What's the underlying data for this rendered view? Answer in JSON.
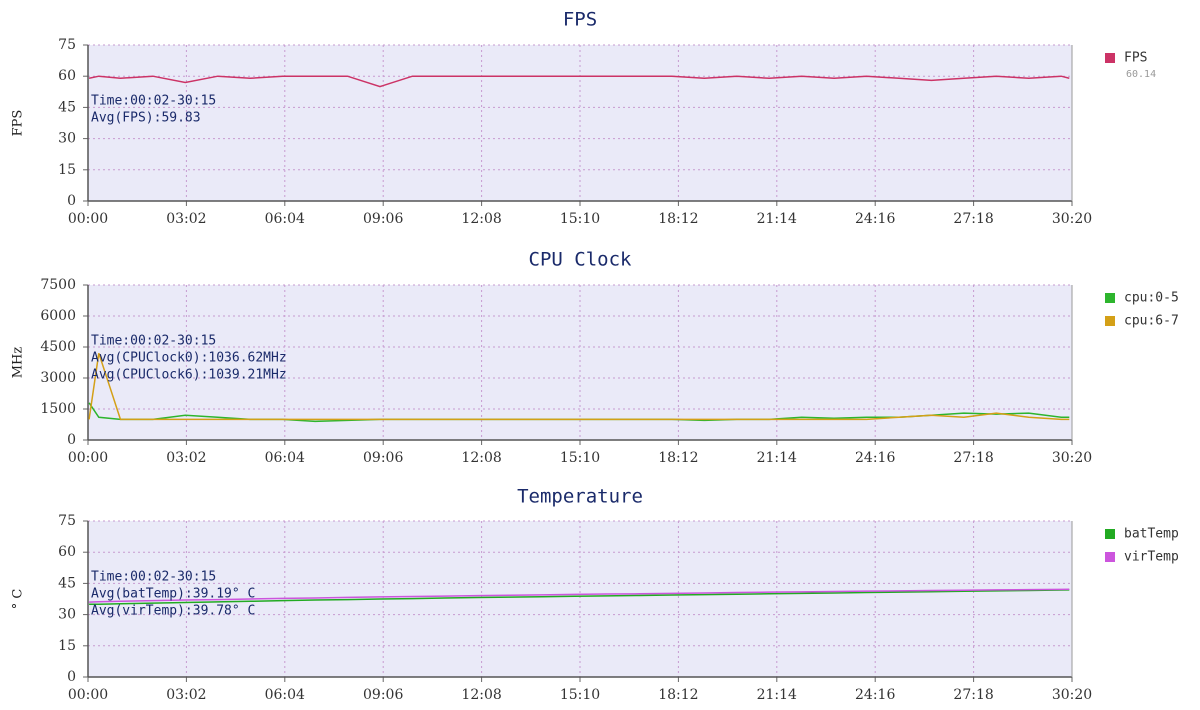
{
  "chart_data": [
    {
      "type": "line",
      "title": "FPS",
      "ylabel": "FPS",
      "x": [
        2,
        20,
        60,
        120,
        180,
        240,
        300,
        360,
        420,
        480,
        540,
        600,
        660,
        720,
        780,
        840,
        900,
        960,
        1020,
        1080,
        1140,
        1200,
        1260,
        1320,
        1380,
        1440,
        1500,
        1560,
        1620,
        1680,
        1740,
        1800,
        1815
      ],
      "xlim": [
        0,
        1820
      ],
      "xticks": [
        {
          "value": 0,
          "label": "00:00"
        },
        {
          "value": 182,
          "label": "03:02"
        },
        {
          "value": 364,
          "label": "06:04"
        },
        {
          "value": 546,
          "label": "09:06"
        },
        {
          "value": 728,
          "label": "12:08"
        },
        {
          "value": 910,
          "label": "15:10"
        },
        {
          "value": 1092,
          "label": "18:12"
        },
        {
          "value": 1274,
          "label": "21:14"
        },
        {
          "value": 1456,
          "label": "24:16"
        },
        {
          "value": 1638,
          "label": "27:18"
        },
        {
          "value": 1820,
          "label": "30:20"
        }
      ],
      "ylim": [
        0,
        75
      ],
      "yticks": [
        0,
        15,
        30,
        45,
        60,
        75
      ],
      "grid": true,
      "annotations": [
        "Time:00:02-30:15",
        "Avg(FPS):59.83"
      ],
      "series": [
        {
          "name": "FPS",
          "color": "#cc3366",
          "legend_value": 60.14,
          "values": [
            59,
            60,
            59,
            60,
            57,
            60,
            59,
            60,
            60,
            60,
            55,
            60,
            60,
            60,
            60,
            60,
            60,
            60,
            60,
            60,
            59,
            60,
            59,
            60,
            59,
            60,
            59,
            58,
            59,
            60,
            59,
            60,
            59
          ]
        }
      ]
    },
    {
      "type": "line",
      "title": "CPU Clock",
      "ylabel": "MHz",
      "x": [
        2,
        20,
        60,
        120,
        180,
        240,
        300,
        360,
        420,
        480,
        540,
        600,
        660,
        720,
        780,
        840,
        900,
        960,
        1020,
        1080,
        1140,
        1200,
        1260,
        1320,
        1380,
        1440,
        1500,
        1560,
        1620,
        1680,
        1740,
        1800,
        1815
      ],
      "xlim": [
        0,
        1820
      ],
      "xticks": [
        {
          "value": 0,
          "label": "00:00"
        },
        {
          "value": 182,
          "label": "03:02"
        },
        {
          "value": 364,
          "label": "06:04"
        },
        {
          "value": 546,
          "label": "09:06"
        },
        {
          "value": 728,
          "label": "12:08"
        },
        {
          "value": 910,
          "label": "15:10"
        },
        {
          "value": 1092,
          "label": "18:12"
        },
        {
          "value": 1274,
          "label": "21:14"
        },
        {
          "value": 1456,
          "label": "24:16"
        },
        {
          "value": 1638,
          "label": "27:18"
        },
        {
          "value": 1820,
          "label": "30:20"
        }
      ],
      "ylim": [
        0,
        7500
      ],
      "yticks": [
        0,
        1500,
        3000,
        4500,
        6000,
        7500
      ],
      "grid": true,
      "annotations": [
        "Time:00:02-30:15",
        "Avg(CPUClock0):1036.62MHz",
        "Avg(CPUClock6):1039.21MHz"
      ],
      "series": [
        {
          "name": "cpu:0-5",
          "color": "#2db52d",
          "values": [
            1800,
            1100,
            1000,
            1000,
            1200,
            1100,
            1000,
            1000,
            900,
            950,
            1000,
            1000,
            1000,
            1000,
            1000,
            1000,
            1000,
            1000,
            1000,
            1000,
            950,
            1000,
            1000,
            1100,
            1050,
            1100,
            1100,
            1200,
            1300,
            1250,
            1300,
            1100,
            1100
          ]
        },
        {
          "name": "cpu:6-7",
          "color": "#d4a017",
          "values": [
            1000,
            4200,
            1000,
            1000,
            1000,
            1000,
            1000,
            1000,
            1000,
            1000,
            1000,
            1000,
            1000,
            1000,
            1000,
            1000,
            1000,
            1000,
            1000,
            1000,
            1000,
            1000,
            1000,
            1000,
            1000,
            1000,
            1100,
            1200,
            1100,
            1300,
            1100,
            1000,
            1000
          ]
        }
      ]
    },
    {
      "type": "line",
      "title": "Temperature",
      "ylabel": "° C",
      "x": [
        2,
        20,
        60,
        120,
        180,
        240,
        300,
        360,
        420,
        480,
        540,
        600,
        660,
        720,
        780,
        840,
        900,
        960,
        1020,
        1080,
        1140,
        1200,
        1260,
        1320,
        1380,
        1440,
        1500,
        1560,
        1620,
        1680,
        1740,
        1800,
        1815
      ],
      "xlim": [
        0,
        1820
      ],
      "xticks": [
        {
          "value": 0,
          "label": "00:00"
        },
        {
          "value": 182,
          "label": "03:02"
        },
        {
          "value": 364,
          "label": "06:04"
        },
        {
          "value": 546,
          "label": "09:06"
        },
        {
          "value": 728,
          "label": "12:08"
        },
        {
          "value": 910,
          "label": "15:10"
        },
        {
          "value": 1092,
          "label": "18:12"
        },
        {
          "value": 1274,
          "label": "21:14"
        },
        {
          "value": 1456,
          "label": "24:16"
        },
        {
          "value": 1638,
          "label": "27:18"
        },
        {
          "value": 1820,
          "label": "30:20"
        }
      ],
      "ylim": [
        0,
        75
      ],
      "yticks": [
        0,
        15,
        30,
        45,
        60,
        75
      ],
      "grid": true,
      "annotations": [
        "Time:00:02-30:15",
        "Avg(batTemp):39.19° C",
        "Avg(virTemp):39.78° C"
      ],
      "series": [
        {
          "name": "batTemp",
          "color": "#22aa22",
          "values": [
            35,
            35,
            35.2,
            35.5,
            35.8,
            36.1,
            36.4,
            36.7,
            37,
            37.2,
            37.5,
            37.7,
            38,
            38.2,
            38.4,
            38.6,
            38.8,
            39,
            39.2,
            39.4,
            39.6,
            39.8,
            40,
            40.2,
            40.4,
            40.6,
            40.8,
            41,
            41.2,
            41.4,
            41.6,
            41.8,
            41.9
          ]
        },
        {
          "name": "virTemp",
          "color": "#cc55dd",
          "values": [
            36,
            36.2,
            36.4,
            36.7,
            37,
            37.2,
            37.5,
            37.8,
            38,
            38.3,
            38.5,
            38.7,
            38.9,
            39.1,
            39.3,
            39.5,
            39.7,
            39.9,
            40,
            40.2,
            40.4,
            40.6,
            40.8,
            40.9,
            41.1,
            41.3,
            41.4,
            41.6,
            41.7,
            41.9,
            42,
            42.1,
            42.2
          ]
        }
      ]
    }
  ]
}
